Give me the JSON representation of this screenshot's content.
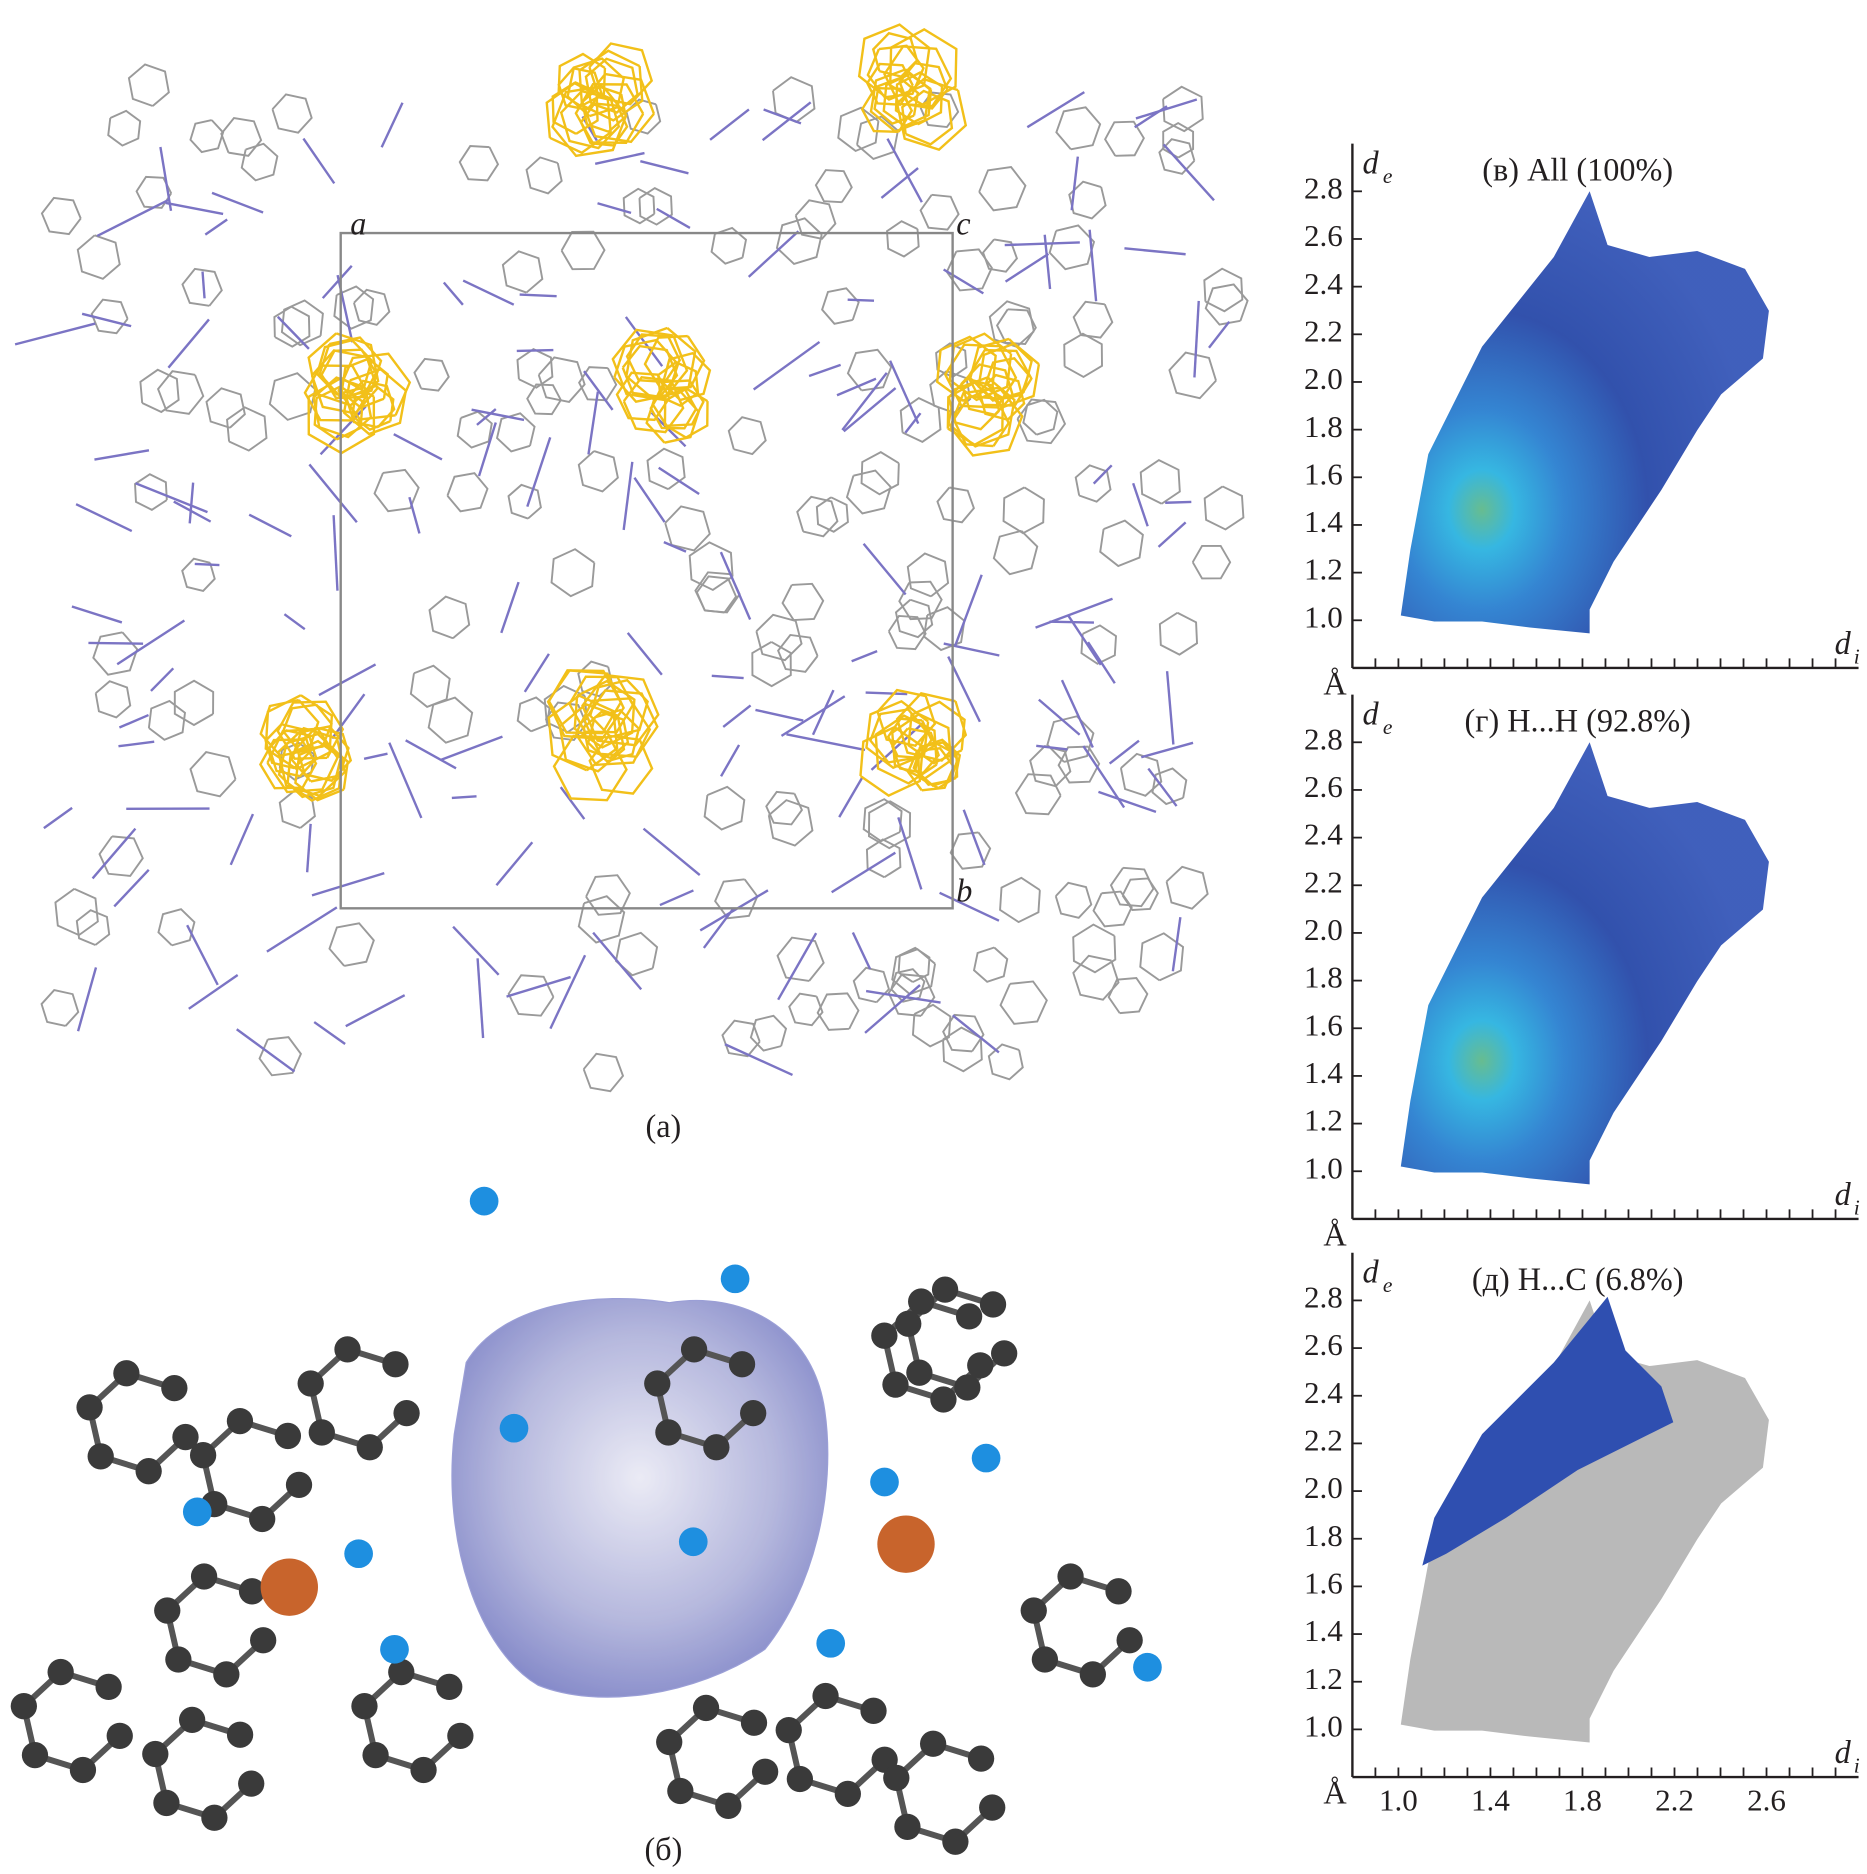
{
  "panels": [
    {
      "label": "(а)",
      "axis_labels": [
        "a",
        "c",
        "b"
      ]
    },
    {
      "label": "(б)"
    }
  ],
  "plots": [
    {
      "title": "(в) All (100%)",
      "y_label": "d",
      "y_sub": "e",
      "x_label": "d",
      "x_sub": "i",
      "unit": "Å",
      "xlim": [
        0.8,
        3.0
      ],
      "ylim": [
        0.8,
        3.0
      ],
      "yticks": [
        {
          "value": 1,
          "label": "1.0"
        },
        1.2,
        1.4,
        1.6,
        1.8,
        {
          "value": 2,
          "label": "2.0"
        },
        2.2,
        2.4,
        2.6,
        2.8
      ],
      "xticks": [
        0.9,
        1,
        1.1,
        1.2,
        1.3,
        1.4,
        1.5,
        1.6,
        1.7,
        1.8,
        1.9,
        2,
        2.1,
        2.2,
        2.3,
        2.4,
        2.5,
        2.6,
        2.7,
        2.8,
        2.9
      ]
    },
    {
      "title": "(г) H...H (92.8%)",
      "y_label": "d",
      "y_sub": "e",
      "x_label": "d",
      "x_sub": "i",
      "unit": "Å",
      "xlim": [
        0.8,
        3.0
      ],
      "ylim": [
        0.8,
        3.0
      ],
      "yticks": [
        {
          "value": 1,
          "label": "1.0"
        },
        1.2,
        1.4,
        1.6,
        1.8,
        {
          "value": 2,
          "label": "2.0"
        },
        2.2,
        2.4,
        2.6,
        2.8
      ],
      "xticks": [
        0.9,
        1,
        1.1,
        1.2,
        1.3,
        1.4,
        1.5,
        1.6,
        1.7,
        1.8,
        1.9,
        2,
        2.1,
        2.2,
        2.3,
        2.4,
        2.5,
        2.6,
        2.7,
        2.8,
        2.9
      ]
    },
    {
      "title": "(д) H...C (6.8%)",
      "y_label": "d",
      "y_sub": "e",
      "x_label": "d",
      "x_sub": "i",
      "unit": "Å",
      "xlim": [
        0.8,
        3.0
      ],
      "ylim": [
        0.8,
        3.0
      ],
      "yticks": [
        {
          "value": 1,
          "label": "1.0"
        },
        1.2,
        1.4,
        1.6,
        1.8,
        {
          "value": 2,
          "label": "2.0"
        },
        2.2,
        2.4,
        2.6,
        2.8
      ],
      "xticks": [
        0.9,
        1,
        1.1,
        1.2,
        1.3,
        1.4,
        1.5,
        1.6,
        1.7,
        1.8,
        1.9,
        2,
        2.1,
        2.2,
        2.3,
        2.4,
        2.5,
        2.6,
        2.7,
        2.8,
        2.9
      ],
      "xtick_labels": [
        {
          "value": 1,
          "label": "1.0"
        },
        1.4,
        1.8,
        2.2,
        2.6
      ]
    }
  ]
}
